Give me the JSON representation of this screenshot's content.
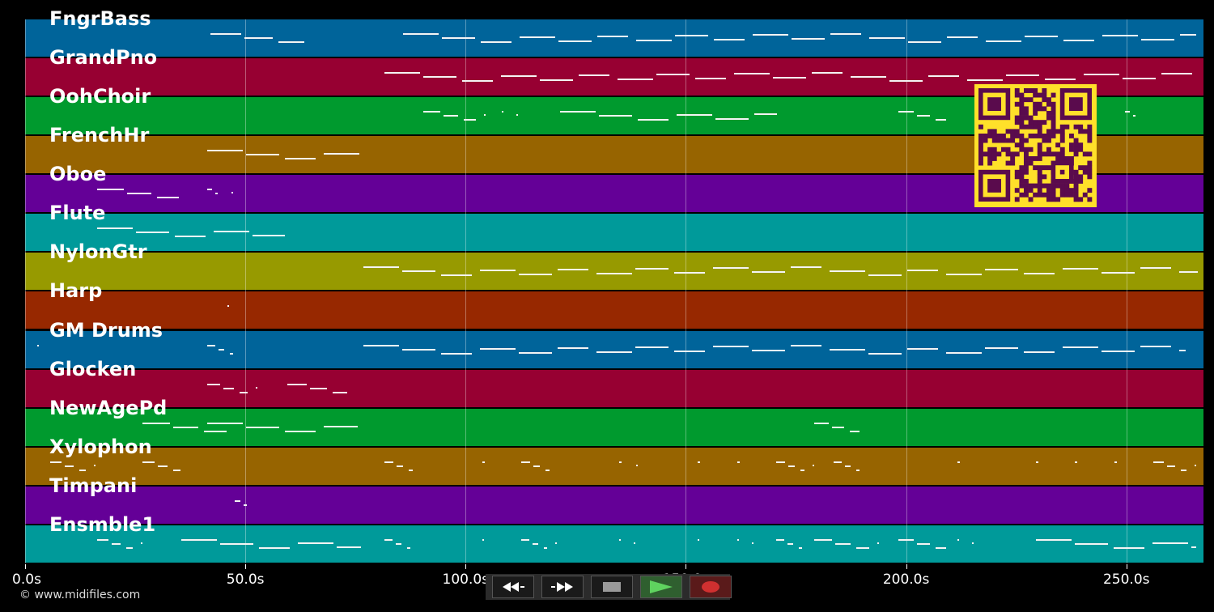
{
  "tracks": [
    {
      "name": "FngrBass",
      "color": "#00649a"
    },
    {
      "name": "GrandPno",
      "color": "#970032"
    },
    {
      "name": "OohChoir",
      "color": "#009a2e"
    },
    {
      "name": "FrenchHr",
      "color": "#976400"
    },
    {
      "name": "Oboe",
      "color": "#640097"
    },
    {
      "name": "Flute",
      "color": "#009a9a"
    },
    {
      "name": "NylonGtr",
      "color": "#979a00"
    },
    {
      "name": "Harp",
      "color": "#972800"
    },
    {
      "name": "GM Drums",
      "color": "#00649a"
    },
    {
      "name": "Glocken",
      "color": "#970032"
    },
    {
      "name": "NewAgePd",
      "color": "#009a2e"
    },
    {
      "name": "Xylophon",
      "color": "#976400"
    },
    {
      "name": "Timpani",
      "color": "#640097"
    },
    {
      "name": "Ensmble1",
      "color": "#009a9a"
    }
  ],
  "time_axis": {
    "labels": [
      "0.0s",
      "50.0s",
      "100.0s",
      "150.0s",
      "200.0s",
      "250.0s"
    ],
    "max_seconds": 267.5
  },
  "credit": "© www.midifiles.com",
  "transport": {
    "rewind_icon": "rewind-icon",
    "fast_forward_icon": "fast-forward-icon",
    "stop_icon": "stop-icon",
    "play_icon": "play-icon",
    "record_icon": "record-icon"
  },
  "colors": {
    "background": "#000000",
    "note": "#f4f4f4",
    "qr_background": "#ffe02a",
    "qr_module": "#5a0b4d",
    "play_green": "#5fd35f",
    "record_red": "#d03030"
  },
  "qr_icon": "qr-code-icon"
}
